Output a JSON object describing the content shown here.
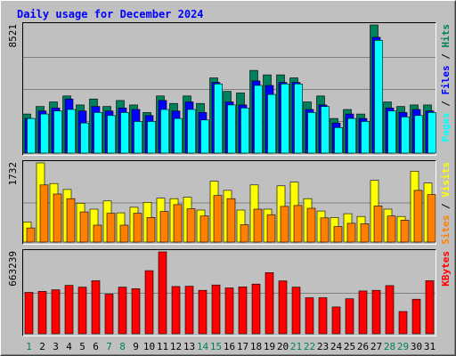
{
  "chart_data": {
    "type": "bar",
    "title": "Daily usage for December 2024",
    "colors": {
      "background": "#c0c0c0",
      "plot_bg": "#c0c0c0",
      "grid": "#808080",
      "title": "#0000ff",
      "hits": "#00805c",
      "files": "#0000ff",
      "pages": "#00ffff",
      "visits": "#ffff00",
      "sites": "#ff8000",
      "kbytes": "#ff0000",
      "weekend_day_label": "#00805c",
      "weekday_label": "#000000"
    },
    "categories": [
      "1",
      "2",
      "3",
      "4",
      "5",
      "6",
      "7",
      "8",
      "9",
      "10",
      "11",
      "12",
      "13",
      "14",
      "15",
      "16",
      "17",
      "18",
      "19",
      "20",
      "21",
      "22",
      "23",
      "24",
      "25",
      "26",
      "27",
      "28",
      "29",
      "30",
      "31"
    ],
    "weekend_days": [
      "1",
      "7",
      "8",
      "14",
      "15",
      "21",
      "22",
      "28",
      "29"
    ],
    "panels": [
      {
        "id": "hits-panel",
        "ylabel_parts": [
          {
            "text": "Pages",
            "color": "#00ffff"
          },
          {
            "text": " / ",
            "color": "#000000"
          },
          {
            "text": "Files",
            "color": "#0000ff"
          },
          {
            "text": " / ",
            "color": "#000000"
          },
          {
            "text": "Hits",
            "color": "#00805c"
          }
        ],
        "ymax_label": "8521",
        "ymax": 8521,
        "series": [
          {
            "name": "Hits",
            "color": "#00805c",
            "values": [
              2600,
              3100,
              3400,
              3800,
              3200,
              3600,
              3100,
              3500,
              3200,
              2700,
              3800,
              3300,
              3800,
              3300,
              5000,
              4100,
              4000,
              5500,
              5200,
              5200,
              5000,
              3400,
              3800,
              2300,
              2900,
              2600,
              8521,
              3400,
              3100,
              3200,
              3200
            ]
          },
          {
            "name": "Files",
            "color": "#0000ff",
            "values": [
              2300,
              2800,
              3000,
              3600,
              2800,
              3100,
              2800,
              3000,
              2900,
              2500,
              3500,
              2800,
              3400,
              2700,
              4700,
              3400,
              3200,
              4800,
              4500,
              4700,
              4700,
              2900,
              3200,
              2000,
              2600,
              2300,
              7700,
              3000,
              2700,
              2900,
              2800
            ]
          },
          {
            "name": "Pages",
            "color": "#00ffff",
            "values": [
              2300,
              2600,
              2800,
              2900,
              2000,
              2700,
              2500,
              2700,
              2100,
              2100,
              2900,
              2300,
              2900,
              2200,
              4600,
              3200,
              3000,
              4500,
              3900,
              4600,
              4600,
              2700,
              3100,
              1700,
              2300,
              2100,
              7500,
              2800,
              2400,
              2500,
              2700
            ]
          }
        ]
      },
      {
        "id": "visits-panel",
        "ylabel_parts": [
          {
            "text": "Sites",
            "color": "#ff8000"
          },
          {
            "text": " / ",
            "color": "#000000"
          },
          {
            "text": "Visits",
            "color": "#ffff00"
          }
        ],
        "ymax_label": "1732",
        "ymax": 1732,
        "series": [
          {
            "name": "Visits",
            "color": "#ffff00",
            "values": [
              440,
              1732,
              1280,
              1150,
              850,
              720,
              900,
              640,
              760,
              870,
              960,
              950,
              980,
              700,
              1330,
              1130,
              700,
              1250,
              720,
              1230,
              1310,
              950,
              680,
              540,
              620,
              560,
              1350,
              720,
              560,
              1550,
              1290
            ]
          },
          {
            "name": "Sites",
            "color": "#ff8000",
            "values": [
              310,
              1250,
              1050,
              950,
              660,
              370,
              630,
              370,
              630,
              540,
              670,
              820,
              730,
              570,
              1020,
              950,
              380,
              720,
              600,
              780,
              800,
              740,
              530,
              340,
              410,
              400,
              790,
              570,
              480,
              1130,
              1040
            ]
          }
        ]
      },
      {
        "id": "kbytes-panel",
        "ylabel_parts": [
          {
            "text": "KBytes",
            "color": "#ff0000"
          }
        ],
        "ymax_label": "663239",
        "ymax": 663239,
        "series": [
          {
            "name": "KBytes",
            "color": "#ff0000",
            "values": [
              335000,
              343000,
              356000,
              392000,
              378000,
              430000,
              321000,
              378000,
              365000,
              511000,
              663239,
              383000,
              385000,
              352000,
              395000,
              371000,
              380000,
              402000,
              495000,
              428000,
              378000,
              292000,
              292000,
              217000,
              283000,
              347000,
              352000,
              390000,
              180000,
              280000,
              430000
            ]
          }
        ]
      }
    ]
  }
}
